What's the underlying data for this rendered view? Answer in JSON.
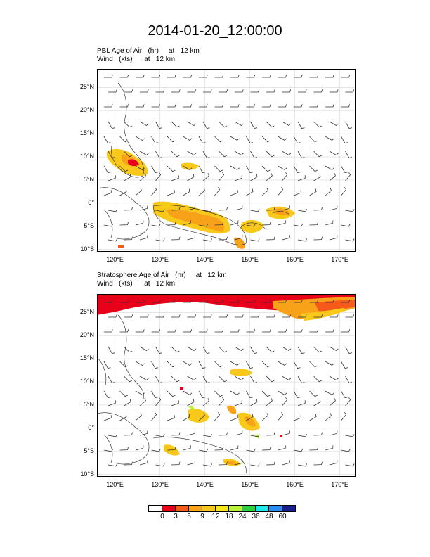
{
  "title": "2014-01-20_12:00:00",
  "panels": [
    {
      "subtitle_line1": "PBL Age of Air   (hr)     at   12 km",
      "subtitle_line2": "Wind   (kts)      at   12 km"
    },
    {
      "subtitle_line1": "Stratosphere Age of Air   (hr)     at   12 km",
      "subtitle_line2": "Wind   (kts)      at   12 km"
    }
  ],
  "lat_labels": [
    "25°N",
    "20°N",
    "15°N",
    "10°N",
    "5°N",
    "0°",
    "5°S",
    "10°S"
  ],
  "lon_labels": [
    "120°E",
    "130°E",
    "140°E",
    "150°E",
    "160°E",
    "170°E"
  ],
  "colorbar": {
    "colors": [
      "#ffffff",
      "#e8001a",
      "#f55a1a",
      "#f8a21a",
      "#f8c81a",
      "#f8e81a",
      "#b8f03a",
      "#2cd23a",
      "#20e8e8",
      "#2a8cf0",
      "#1a1e8c"
    ],
    "labels": [
      "0",
      "3",
      "6",
      "9",
      "12",
      "18",
      "24",
      "36",
      "48",
      "60"
    ]
  }
}
